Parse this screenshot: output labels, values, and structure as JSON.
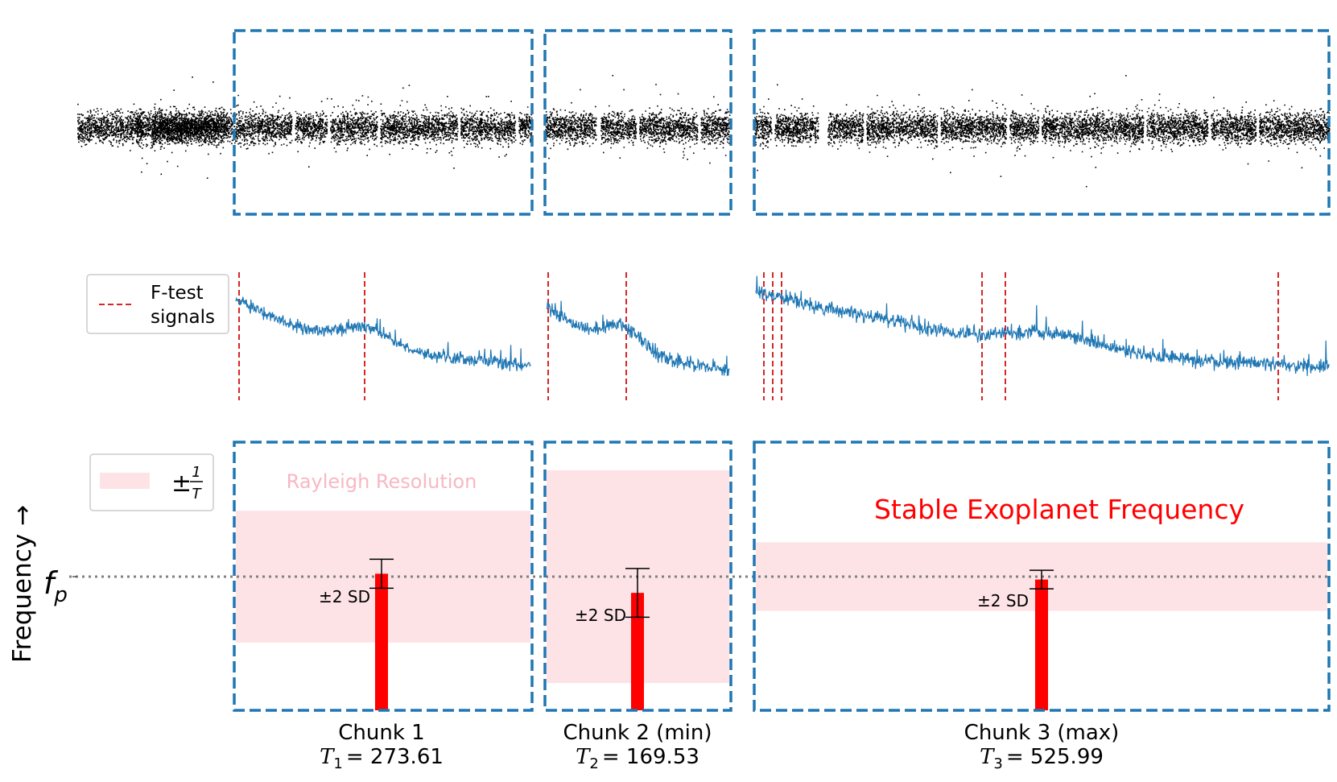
{
  "colors": {
    "chunk_box": "#1f77b4",
    "light_curve_points": "#000000",
    "periodogram_line": "#1f77b4",
    "ftest_line": "#d62728",
    "rayleigh_band": "#fde3e6",
    "bar": "#ff0000",
    "title_text": "#ff0000",
    "rayleigh_label": "#f7b8c3",
    "fp_line": "#808080"
  },
  "legend_ftest": {
    "label_line1": "F-test",
    "label_line2": "signals"
  },
  "legend_rayleigh": {
    "label_prefix": "±",
    "frac_num": "1",
    "frac_den": "T"
  },
  "yaxis": {
    "label": "Frequency →",
    "fp_label": "f",
    "fp_sub": "p"
  },
  "annotations": {
    "rayleigh_resolution": "Rayleigh Resolution",
    "stable_frequency": "Stable Exoplanet Frequency",
    "sd_label": "±2 SD"
  },
  "chunks": [
    {
      "name": "Chunk 1",
      "T_label": "T",
      "T_sub": "1",
      "T_value": "= 273.61",
      "T": 273.61,
      "freq_offset": 0.05,
      "sd2": 0.25
    },
    {
      "name": "Chunk 2 (min)",
      "T_label": "T",
      "T_sub": "2",
      "T_value": "= 169.53",
      "T": 169.53,
      "freq_offset": -0.28,
      "sd2": 0.42
    },
    {
      "name": "Chunk 3 (max)",
      "T_label": "T",
      "T_sub": "3",
      "T_value": "= 525.99",
      "T": 525.99,
      "freq_offset": -0.05,
      "sd2": 0.16
    }
  ]
}
